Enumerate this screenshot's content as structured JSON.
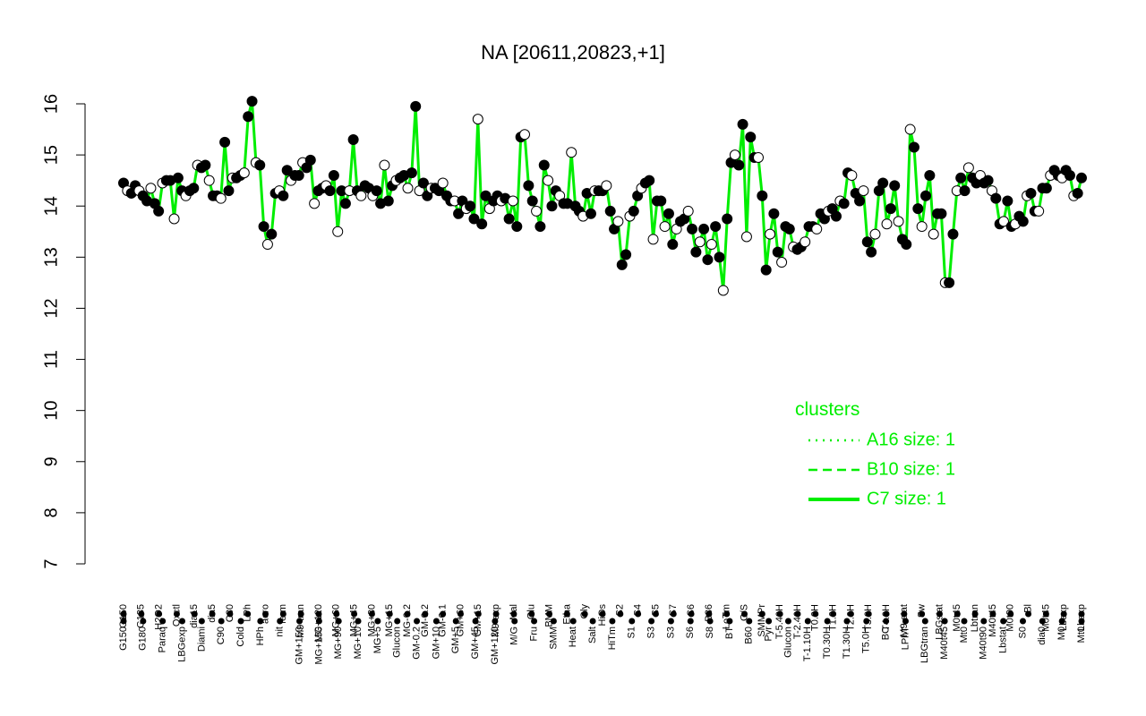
{
  "colors": {
    "line": "#00ee00",
    "points": "#000000",
    "open_fill": "#ffffff",
    "legend": "#00ee00"
  },
  "chart_data": {
    "type": "line",
    "title": "NA [20611,20823,+1]",
    "xlabel": "",
    "ylabel": "",
    "ylim": [
      7,
      16
    ],
    "yticks": [
      7,
      8,
      9,
      10,
      11,
      12,
      13,
      14,
      15,
      16
    ],
    "xtick_labels_top": [
      "G150",
      "G135",
      "H2O2",
      "Oxctl",
      "dia15",
      "dia5",
      "C30",
      "LPh",
      "aero",
      "ferm",
      "M9-tran",
      "MG+120",
      "MG+60",
      "MG+45",
      "MG+30",
      "MG+15",
      "MG-0.2",
      "GM-0.2",
      "GM-0.1",
      "GM+60",
      "GM+15",
      "M9-exp",
      "Mal",
      "Glu",
      "BMM",
      "Etha",
      "Gly",
      "HiOs",
      "S2",
      "S4",
      "S5",
      "S7",
      "S6",
      "B36",
      "LoTm",
      "G/S",
      "SMMPr",
      "T-5.40H",
      "T-2.40H",
      "T0.0H",
      "T1.0H",
      "T2.0H",
      "T3.0H",
      "T4.0H",
      "M9-stat",
      "Sw",
      "LBGstat",
      "M0t45",
      "Lbtran",
      "M40t45",
      "M0t90",
      "Bl",
      "M0t45",
      "Lbexp",
      "Lbexp"
    ],
    "xtick_labels_bottom": [
      "G150",
      "G180",
      "Paraq",
      "LBGexp",
      "Diami",
      "C90",
      "Cold",
      "HPh",
      "nit",
      "GM+150",
      "MG+150",
      "MG+90",
      "MG+10",
      "MG+5",
      "Glucon",
      "GM-0.2",
      "GM+10",
      "GM+5",
      "GM+45",
      "GM+120",
      "M/G",
      "Fru",
      "SMM",
      "Heat",
      "Salt",
      "HiTm",
      "S1",
      "S3",
      "S3",
      "S6",
      "S8",
      "BT",
      "B60",
      "Pyr",
      "Glucon",
      "T-1.10H",
      "T0.30H",
      "T1.30H",
      "T5.0H",
      "BC",
      "LPhT",
      "LBGtran",
      "M40t45",
      "Mt0",
      "M40t90",
      "Lbstat",
      "S0",
      "dia0",
      "M0",
      "Mt0"
    ],
    "legend": {
      "title": "clusters",
      "position": "right",
      "entries": [
        {
          "label": "A16 size: 1",
          "style": "dotted"
        },
        {
          "label": "B10 size: 1",
          "style": "dashed"
        },
        {
          "label": "C7 size: 1",
          "style": "solid"
        }
      ]
    },
    "series": [
      {
        "values": [
          14.45,
          14.3,
          14.25,
          14.4,
          14.3,
          14.2,
          14.1,
          14.35,
          14.05,
          13.9,
          14.45,
          14.5,
          14.5,
          13.75,
          14.55,
          14.3,
          14.2,
          14.3,
          14.35,
          14.8,
          14.75,
          14.8,
          14.5,
          14.2,
          14.2,
          14.15,
          15.25,
          14.3,
          14.55,
          14.55,
          14.6,
          14.65,
          15.75,
          16.05,
          14.85,
          14.8,
          13.6,
          13.25,
          13.45,
          14.25,
          14.3,
          14.2,
          14.7,
          14.5,
          14.6,
          14.6,
          14.85,
          14.75,
          14.9,
          14.05,
          14.3,
          14.35,
          14.4,
          14.3,
          14.6,
          13.5,
          14.3,
          14.05,
          14.3,
          15.3,
          14.3,
          14.2,
          14.4,
          14.35,
          14.2,
          14.3,
          14.05,
          14.8,
          14.1,
          14.4,
          14.5,
          14.55,
          14.6,
          14.35,
          14.65,
          15.95,
          14.3,
          14.45,
          14.2,
          14.35,
          14.35,
          14.3,
          14.45,
          14.2,
          14.1,
          14.1,
          13.85,
          14.1,
          13.95,
          14.0,
          13.75,
          15.7,
          13.65,
          14.2,
          13.95,
          14.1,
          14.2,
          14.1,
          14.15,
          13.75,
          14.1,
          13.6,
          15.35,
          15.4,
          14.4,
          14.1,
          13.9,
          13.6,
          14.8,
          14.5,
          14.0,
          14.3,
          14.2,
          14.05,
          14.05,
          15.05,
          14.0,
          13.9,
          13.8,
          14.25,
          13.85,
          14.3,
          14.3,
          14.3,
          14.4,
          13.9,
          13.55,
          13.7,
          12.85,
          13.05,
          13.8,
          13.9,
          14.2,
          14.35,
          14.45,
          14.5,
          13.35,
          14.1,
          14.1,
          13.6,
          13.85,
          13.25,
          13.55,
          13.7,
          13.75,
          13.9,
          13.55,
          13.1,
          13.3,
          13.55,
          12.95,
          13.25,
          13.6,
          13.0,
          12.35,
          13.75,
          14.85,
          15.0,
          14.8,
          15.6,
          13.4,
          15.35,
          14.95,
          14.95,
          14.2,
          12.75,
          13.45,
          13.85,
          13.1,
          12.9,
          13.6,
          13.55,
          13.2,
          13.15,
          13.2,
          13.3,
          13.6,
          13.6,
          13.55,
          13.85,
          13.75,
          13.9,
          13.95,
          13.8,
          14.1,
          14.05,
          14.65,
          14.6,
          14.25,
          14.1,
          14.3,
          13.3,
          13.1,
          13.45,
          14.3,
          14.45,
          13.65,
          13.95,
          14.4,
          13.7,
          13.35,
          13.25,
          15.5,
          15.15,
          13.95,
          13.6,
          14.2,
          14.6,
          13.45,
          13.85,
          13.85,
          12.5,
          12.5,
          13.45,
          14.3,
          14.55,
          14.3,
          14.75,
          14.55,
          14.45,
          14.6,
          14.45,
          14.5,
          14.3,
          14.15,
          13.65,
          13.7,
          14.1,
          13.6,
          13.65,
          13.8,
          13.7,
          14.2,
          14.25,
          13.9,
          13.9,
          14.35,
          14.35,
          14.6,
          14.7,
          14.6,
          14.55,
          14.7,
          14.6,
          14.2,
          14.25,
          14.55
        ]
      }
    ]
  }
}
